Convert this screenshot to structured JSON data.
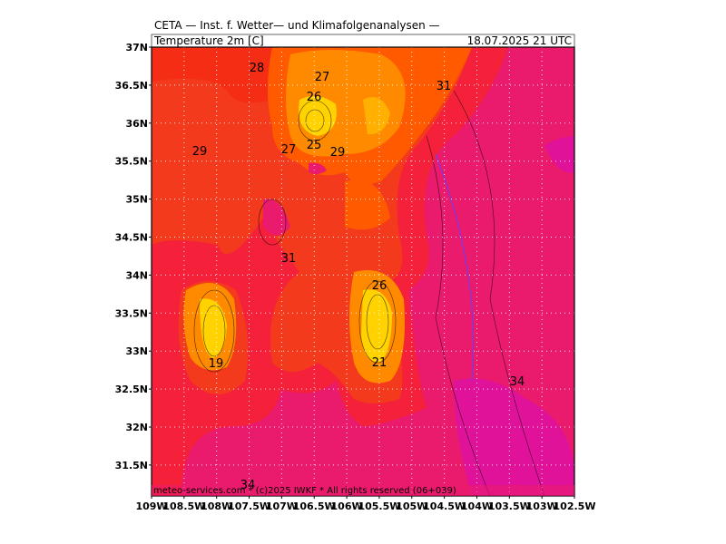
{
  "header": {
    "title": "CETA — Inst. f. Wetter— und Klimafolgenanalysen —",
    "field": "Temperature 2m [C]",
    "valid": "18.07.2025 21 UTC"
  },
  "lat_labels": [
    "37N",
    "36.5N",
    "36N",
    "35.5N",
    "35N",
    "34.5N",
    "34N",
    "33.5N",
    "33N",
    "32.5N",
    "32N",
    "31.5N"
  ],
  "lon_labels": [
    "109W",
    "108.5W",
    "108W",
    "107.5W",
    "107W",
    "106.5W",
    "106W",
    "105.5W",
    "105W",
    "104.5W",
    "104W",
    "103.5W",
    "103W",
    "102.5W"
  ],
  "contour_labels": [
    28,
    27,
    26,
    31,
    29,
    27,
    25,
    29,
    31,
    26,
    19,
    21,
    34,
    34
  ],
  "footer": "meteo-services.com * (c)2025 IWKF * All rights reserved (06+039)"
}
